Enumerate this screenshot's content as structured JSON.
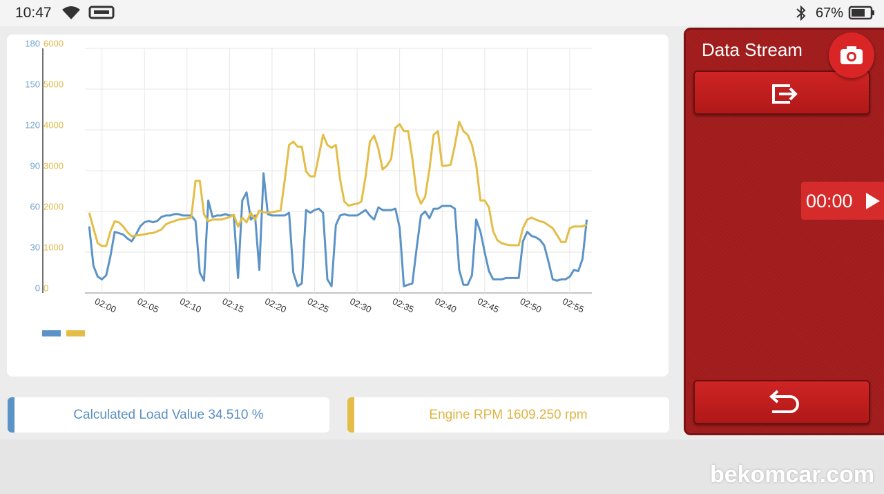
{
  "status_bar": {
    "time": "10:47",
    "battery": "67%"
  },
  "chart_data": {
    "type": "line",
    "x": [
      118.5,
      119,
      119.5,
      120,
      120.5,
      121,
      121.5,
      122,
      122.5,
      123,
      123.5,
      124,
      124.5,
      125,
      125.5,
      126,
      126.5,
      127,
      127.5,
      128,
      128.5,
      129,
      129.5,
      130,
      130.5,
      131,
      131.5,
      132,
      132.5,
      133,
      133.5,
      134,
      134.5,
      135,
      135.5,
      136,
      136.5,
      137,
      137.5,
      138,
      138.5,
      139,
      139.5,
      140,
      140.5,
      141,
      141.5,
      142,
      142.5,
      143,
      143.5,
      144,
      144.5,
      145,
      145.5,
      146,
      146.5,
      147,
      147.5,
      148,
      148.5,
      149,
      149.5,
      150,
      150.5,
      151,
      151.5,
      152,
      152.5,
      153,
      153.5,
      154,
      154.5,
      155,
      155.5,
      156,
      156.5,
      157,
      157.5,
      158,
      158.5,
      159,
      159.5,
      160,
      160.5,
      161,
      161.5,
      162,
      162.5,
      163,
      163.5,
      164,
      164.5,
      165,
      165.5,
      166,
      166.5,
      167,
      167.5,
      168,
      168.5,
      169,
      169.5,
      170,
      170.5,
      171,
      171.5,
      172,
      172.5,
      173,
      173.5,
      174,
      174.5,
      175,
      175.5,
      176,
      176.5,
      177
    ],
    "series": [
      {
        "color": "#5b93c7",
        "axis": "y",
        "values": [
          49,
          20,
          12,
          10,
          13,
          27,
          45,
          44,
          43,
          40,
          38,
          43,
          49,
          52,
          53,
          52,
          53,
          56,
          57,
          57,
          58,
          58,
          57,
          57,
          57,
          53,
          15,
          9,
          68,
          56,
          57,
          57,
          58,
          57,
          57,
          11,
          68,
          74,
          54,
          57,
          17,
          88,
          58,
          57,
          57,
          57,
          57,
          59,
          15,
          5,
          7,
          61,
          59,
          61,
          62,
          59,
          10,
          5,
          50,
          57,
          58,
          57,
          57,
          57,
          59,
          61,
          57,
          54,
          63,
          61,
          61,
          61,
          62,
          48,
          5,
          6,
          7,
          33,
          57,
          60,
          55,
          62,
          62,
          64,
          64,
          64,
          62,
          17,
          6,
          6,
          13,
          54,
          45,
          30,
          16,
          10,
          10,
          10,
          11,
          11,
          11,
          11,
          38,
          45,
          42,
          41,
          39,
          35,
          23,
          10,
          9,
          10,
          10,
          12,
          17,
          16,
          25,
          54
        ]
      },
      {
        "color": "#e3bd47",
        "axis": "y2",
        "values": [
          1970,
          1590,
          1220,
          1150,
          1150,
          1510,
          1760,
          1730,
          1630,
          1490,
          1390,
          1410,
          1420,
          1440,
          1460,
          1470,
          1510,
          1560,
          1680,
          1730,
          1760,
          1800,
          1810,
          1830,
          1850,
          2750,
          2750,
          1930,
          1760,
          1800,
          1800,
          1800,
          1830,
          1860,
          1920,
          1630,
          1850,
          1730,
          1970,
          1800,
          2020,
          1980,
          1970,
          1980,
          2000,
          2020,
          2780,
          3630,
          3710,
          3590,
          3590,
          2980,
          2860,
          2860,
          3370,
          3880,
          3630,
          3560,
          3630,
          2780,
          2240,
          2140,
          2170,
          2190,
          2240,
          2860,
          3710,
          3860,
          3540,
          3030,
          3120,
          3290,
          4050,
          4140,
          3970,
          3970,
          3290,
          2440,
          2190,
          2360,
          3030,
          3880,
          3970,
          3120,
          3120,
          3150,
          3630,
          4200,
          3970,
          3880,
          3630,
          3150,
          2270,
          2270,
          2100,
          1510,
          1290,
          1220,
          1190,
          1170,
          1170,
          1170,
          1590,
          1800,
          1850,
          1800,
          1760,
          1730,
          1660,
          1590,
          1420,
          1250,
          1250,
          1590,
          1630,
          1630,
          1630,
          1680
        ]
      }
    ],
    "xlim": [
      118,
      177.6
    ],
    "xticks": [
      {
        "value": 120,
        "label": "02:00"
      },
      {
        "value": 125,
        "label": "02:05"
      },
      {
        "value": 130,
        "label": "02:10"
      },
      {
        "value": 135,
        "label": "02:15"
      },
      {
        "value": 140,
        "label": "02:20"
      },
      {
        "value": 145,
        "label": "02:25"
      },
      {
        "value": 150,
        "label": "02:30"
      },
      {
        "value": 155,
        "label": "02:35"
      },
      {
        "value": 160,
        "label": "02:40"
      },
      {
        "value": 165,
        "label": "02:45"
      },
      {
        "value": 170,
        "label": "02:50"
      },
      {
        "value": 175,
        "label": "02:55"
      }
    ],
    "ylim": [
      0,
      180
    ],
    "yticks": [
      0,
      30,
      60,
      90,
      120,
      150,
      180
    ],
    "y2lim": [
      0,
      6000
    ],
    "y2ticks": [
      0,
      1000,
      2000,
      3000,
      4000,
      5000,
      6000
    ],
    "grid": true
  },
  "readouts": [
    "Calculated Load Value 34.510 %",
    "Engine RPM 1609.250 rpm"
  ],
  "panel": {
    "title": "Data Stream",
    "timer": "00:00"
  },
  "watermark": "bekomcar.com"
}
